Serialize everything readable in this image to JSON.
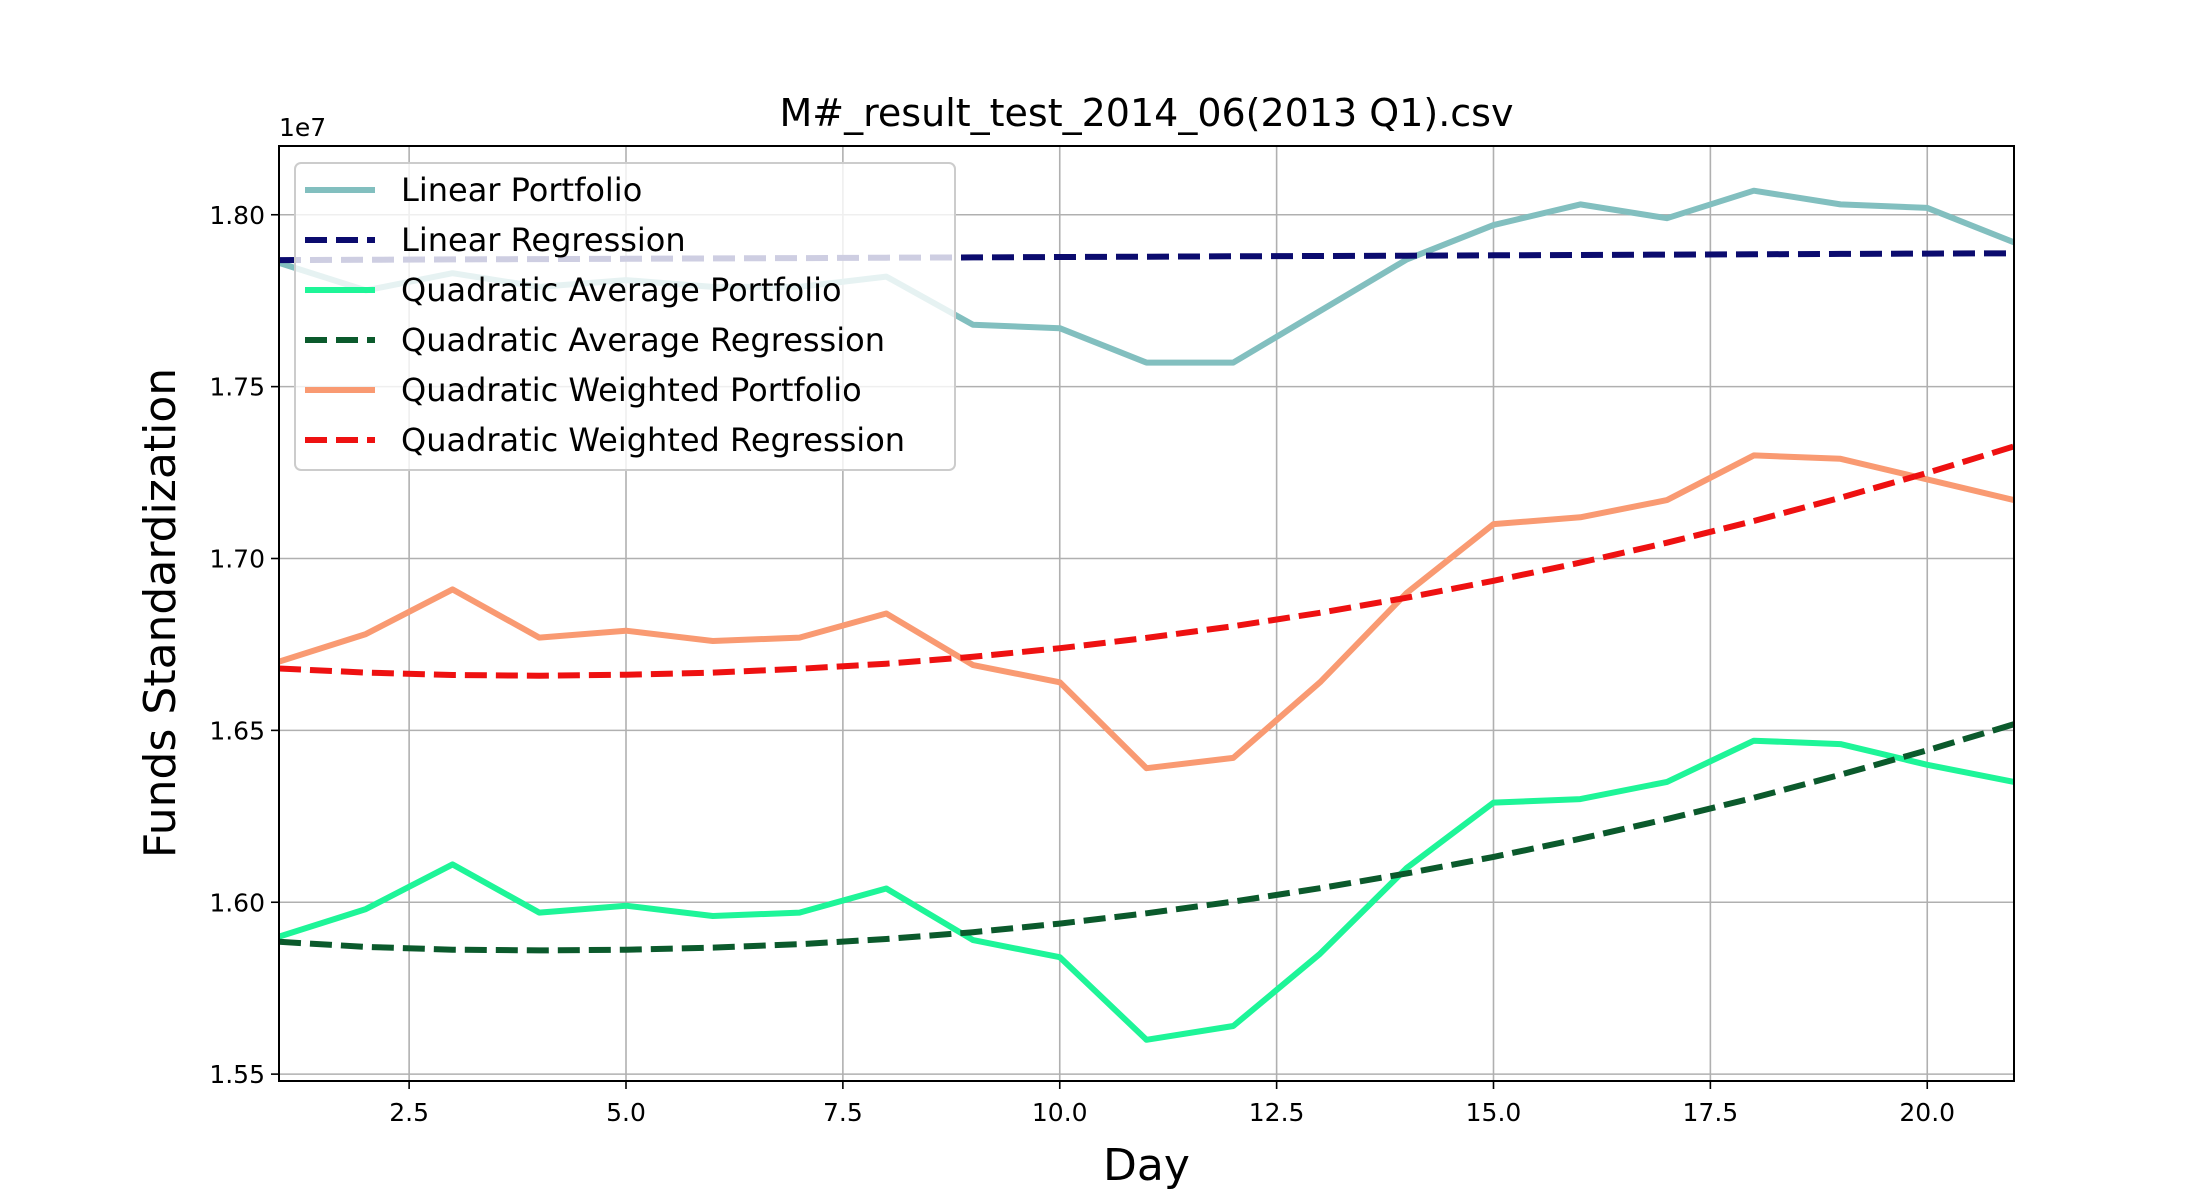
{
  "chart_data": {
    "type": "line",
    "title": "M#_result_test_2014_06(2013 Q1).csv",
    "xlabel": "Day",
    "ylabel": "Funds Standardization",
    "y_offset_label": "1e7",
    "xlim": [
      1,
      21
    ],
    "ylim": [
      1.548,
      1.82
    ],
    "x_ticks": [
      2.5,
      5.0,
      7.5,
      10.0,
      12.5,
      15.0,
      17.5,
      20.0
    ],
    "x_tick_labels": [
      "2.5",
      "5.0",
      "7.5",
      "10.0",
      "12.5",
      "15.0",
      "17.5",
      "20.0"
    ],
    "y_ticks": [
      1.55,
      1.6,
      1.65,
      1.7,
      1.75,
      1.8
    ],
    "y_tick_labels": [
      "1.55",
      "1.60",
      "1.65",
      "1.70",
      "1.75",
      "1.80"
    ],
    "grid": true,
    "legend_position": "top-left",
    "x": [
      1,
      2,
      3,
      4,
      5,
      6,
      7,
      8,
      9,
      10,
      11,
      12,
      13,
      14,
      15,
      16,
      17,
      18,
      19,
      20,
      21
    ],
    "series": [
      {
        "name": "Linear Portfolio",
        "style": "solid",
        "color": "#82bfbf",
        "values": [
          1.786,
          1.778,
          1.783,
          1.779,
          1.781,
          1.779,
          1.779,
          1.782,
          1.768,
          1.767,
          1.757,
          1.757,
          1.772,
          1.787,
          1.797,
          1.803,
          1.799,
          1.807,
          1.803,
          1.802,
          1.792
        ]
      },
      {
        "name": "Linear Regression",
        "style": "dashed",
        "color": "#0b0b6e",
        "values": [
          1.7868,
          1.7869,
          1.787,
          1.7871,
          1.7872,
          1.7873,
          1.7874,
          1.7875,
          1.7876,
          1.7877,
          1.7878,
          1.7879,
          1.788,
          1.7881,
          1.7882,
          1.7883,
          1.7884,
          1.7885,
          1.7886,
          1.7887,
          1.7888
        ]
      },
      {
        "name": "Quadratic Average Portfolio",
        "style": "solid",
        "color": "#1ef598",
        "values": [
          1.59,
          1.598,
          1.611,
          1.597,
          1.599,
          1.596,
          1.597,
          1.604,
          1.589,
          1.584,
          1.56,
          1.564,
          1.585,
          1.61,
          1.629,
          1.63,
          1.635,
          1.647,
          1.646,
          1.64,
          1.635
        ]
      },
      {
        "name": "Quadratic Average Regression",
        "style": "dashed",
        "color": "#0b5a2c",
        "values": [
          1.5885,
          1.587,
          1.5862,
          1.586,
          1.5862,
          1.5868,
          1.5878,
          1.5893,
          1.5913,
          1.5938,
          1.5968,
          1.6002,
          1.6041,
          1.6084,
          1.6132,
          1.6185,
          1.6242,
          1.6304,
          1.6371,
          1.6442,
          1.6518
        ]
      },
      {
        "name": "Quadratic Weighted Portfolio",
        "style": "solid",
        "color": "#f99a72",
        "values": [
          1.67,
          1.678,
          1.691,
          1.677,
          1.679,
          1.676,
          1.677,
          1.684,
          1.669,
          1.664,
          1.639,
          1.642,
          1.664,
          1.69,
          1.71,
          1.712,
          1.717,
          1.73,
          1.729,
          1.723,
          1.717
        ]
      },
      {
        "name": "Quadratic Weighted Regression",
        "style": "dashed",
        "color": "#ee1111",
        "values": [
          1.668,
          1.6668,
          1.6661,
          1.6659,
          1.6662,
          1.6668,
          1.6679,
          1.6694,
          1.6714,
          1.6739,
          1.6769,
          1.6803,
          1.6842,
          1.6886,
          1.6935,
          1.6988,
          1.7046,
          1.7109,
          1.7177,
          1.7249,
          1.7326
        ]
      }
    ]
  }
}
